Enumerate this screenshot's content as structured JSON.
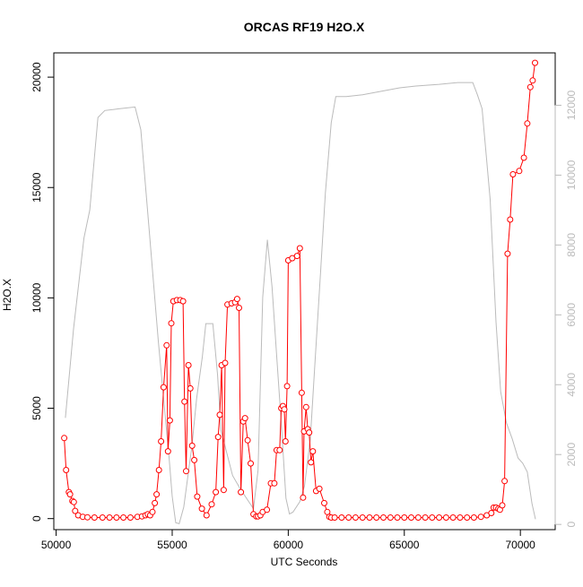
{
  "chart_data": {
    "type": "line",
    "title": "ORCAS RF19 H2O.X",
    "xlabel": "UTC Seconds",
    "ylabel": "H2O.X",
    "xlim": [
      49900,
      71500
    ],
    "ylim": [
      -500,
      21100
    ],
    "y2lim": [
      -150,
      13500
    ],
    "x_ticks": [
      50000,
      55000,
      60000,
      65000,
      70000
    ],
    "x_tick_labels": [
      "50000",
      "55000",
      "60000",
      "65000",
      "70000"
    ],
    "y_ticks": [
      0,
      5000,
      10000,
      15000,
      20000
    ],
    "y_tick_labels": [
      "0",
      "5000",
      "10000",
      "15000",
      "20000"
    ],
    "y2_ticks": [
      0,
      2000,
      4000,
      6000,
      8000,
      10000,
      12000
    ],
    "y2_tick_labels": [
      "0",
      "2000",
      "4000",
      "6000",
      "8000",
      "10000",
      "12000"
    ],
    "colors": {
      "primary": "#ff0000",
      "secondary": "#bbbbbb",
      "axis": "#000000"
    },
    "series": [
      {
        "axis": "left",
        "style": "line-points",
        "color": "#ff0000",
        "points": [
          [
            50350,
            3650
          ],
          [
            50430,
            2200
          ],
          [
            50550,
            1200
          ],
          [
            50600,
            1100
          ],
          [
            50700,
            800
          ],
          [
            50760,
            750
          ],
          [
            50820,
            350
          ],
          [
            50950,
            150
          ],
          [
            51150,
            80
          ],
          [
            51350,
            60
          ],
          [
            51650,
            50
          ],
          [
            52000,
            50
          ],
          [
            52300,
            50
          ],
          [
            52600,
            50
          ],
          [
            52900,
            50
          ],
          [
            53200,
            50
          ],
          [
            53500,
            80
          ],
          [
            53700,
            100
          ],
          [
            53850,
            150
          ],
          [
            53950,
            200
          ],
          [
            54050,
            150
          ],
          [
            54150,
            300
          ],
          [
            54250,
            700
          ],
          [
            54330,
            1100
          ],
          [
            54430,
            2200
          ],
          [
            54520,
            3500
          ],
          [
            54630,
            5950
          ],
          [
            54760,
            7850
          ],
          [
            54820,
            3050
          ],
          [
            54900,
            4450
          ],
          [
            54960,
            8850
          ],
          [
            55050,
            9850
          ],
          [
            55200,
            9900
          ],
          [
            55350,
            9900
          ],
          [
            55470,
            9850
          ],
          [
            55530,
            5300
          ],
          [
            55600,
            2150
          ],
          [
            55700,
            6950
          ],
          [
            55780,
            5900
          ],
          [
            55860,
            3300
          ],
          [
            55950,
            2650
          ],
          [
            56080,
            1000
          ],
          [
            56280,
            450
          ],
          [
            56480,
            150
          ],
          [
            56700,
            650
          ],
          [
            56880,
            1200
          ],
          [
            56980,
            3700
          ],
          [
            57050,
            4700
          ],
          [
            57130,
            6950
          ],
          [
            57220,
            1300
          ],
          [
            57280,
            7050
          ],
          [
            57380,
            9700
          ],
          [
            57560,
            9750
          ],
          [
            57710,
            9800
          ],
          [
            57800,
            9950
          ],
          [
            57880,
            9550
          ],
          [
            57960,
            1200
          ],
          [
            58060,
            4400
          ],
          [
            58140,
            4550
          ],
          [
            58250,
            3550
          ],
          [
            58380,
            2500
          ],
          [
            58500,
            200
          ],
          [
            58620,
            100
          ],
          [
            58700,
            100
          ],
          [
            58800,
            150
          ],
          [
            58900,
            300
          ],
          [
            59080,
            400
          ],
          [
            59250,
            1600
          ],
          [
            59400,
            1600
          ],
          [
            59500,
            3100
          ],
          [
            59630,
            3100
          ],
          [
            59700,
            5000
          ],
          [
            59770,
            5100
          ],
          [
            59830,
            4950
          ],
          [
            59880,
            3500
          ],
          [
            59950,
            6000
          ],
          [
            60000,
            11700
          ],
          [
            60170,
            11800
          ],
          [
            60380,
            11900
          ],
          [
            60500,
            12250
          ],
          [
            60580,
            5700
          ],
          [
            60640,
            950
          ],
          [
            60680,
            3950
          ],
          [
            60770,
            5050
          ],
          [
            60840,
            4050
          ],
          [
            60900,
            3900
          ],
          [
            60980,
            2550
          ],
          [
            61060,
            3050
          ],
          [
            61200,
            1250
          ],
          [
            61340,
            1350
          ],
          [
            61550,
            700
          ],
          [
            61680,
            300
          ],
          [
            61770,
            80
          ],
          [
            61850,
            50
          ],
          [
            62000,
            50
          ],
          [
            62300,
            50
          ],
          [
            62600,
            50
          ],
          [
            62900,
            50
          ],
          [
            63200,
            50
          ],
          [
            63500,
            50
          ],
          [
            63800,
            50
          ],
          [
            64100,
            50
          ],
          [
            64400,
            50
          ],
          [
            64700,
            50
          ],
          [
            65000,
            50
          ],
          [
            65300,
            50
          ],
          [
            65600,
            50
          ],
          [
            65900,
            50
          ],
          [
            66200,
            50
          ],
          [
            66500,
            50
          ],
          [
            66800,
            50
          ],
          [
            67100,
            50
          ],
          [
            67400,
            50
          ],
          [
            67700,
            50
          ],
          [
            68000,
            50
          ],
          [
            68300,
            80
          ],
          [
            68550,
            150
          ],
          [
            68750,
            250
          ],
          [
            68850,
            500
          ],
          [
            68950,
            500
          ],
          [
            69050,
            450
          ],
          [
            69120,
            400
          ],
          [
            69220,
            600
          ],
          [
            69320,
            1700
          ],
          [
            69450,
            12000
          ],
          [
            69560,
            13550
          ],
          [
            69680,
            15600
          ],
          [
            69950,
            15750
          ],
          [
            70150,
            16350
          ],
          [
            70300,
            17900
          ],
          [
            70430,
            19550
          ],
          [
            70530,
            19850
          ],
          [
            70630,
            20650
          ]
        ]
      },
      {
        "axis": "right",
        "style": "line",
        "color": "#bbbbbb",
        "points": [
          [
            50400,
            3050
          ],
          [
            50750,
            5600
          ],
          [
            51200,
            8200
          ],
          [
            51450,
            9000
          ],
          [
            51800,
            11650
          ],
          [
            52100,
            11850
          ],
          [
            52700,
            11900
          ],
          [
            53400,
            11950
          ],
          [
            53650,
            11300
          ],
          [
            54000,
            8500
          ],
          [
            54400,
            5250
          ],
          [
            54700,
            3100
          ],
          [
            54850,
            2050
          ],
          [
            55000,
            800
          ],
          [
            55150,
            50
          ],
          [
            55300,
            20
          ],
          [
            55500,
            500
          ],
          [
            55700,
            1500
          ],
          [
            55850,
            2250
          ],
          [
            56050,
            3600
          ],
          [
            56300,
            4800
          ],
          [
            56450,
            5750
          ],
          [
            56750,
            5750
          ],
          [
            56950,
            4300
          ],
          [
            57100,
            2700
          ],
          [
            57350,
            2050
          ],
          [
            57600,
            1400
          ],
          [
            57950,
            1000
          ],
          [
            58250,
            700
          ],
          [
            58500,
            450
          ],
          [
            58700,
            1550
          ],
          [
            58900,
            6500
          ],
          [
            59100,
            8150
          ],
          [
            59300,
            6800
          ],
          [
            59500,
            4850
          ],
          [
            59700,
            2900
          ],
          [
            59900,
            750
          ],
          [
            60050,
            300
          ],
          [
            60200,
            350
          ],
          [
            60500,
            650
          ],
          [
            60700,
            1100
          ],
          [
            60950,
            2450
          ],
          [
            61150,
            4600
          ],
          [
            61400,
            7300
          ],
          [
            61600,
            9500
          ],
          [
            61850,
            11500
          ],
          [
            62050,
            12250
          ],
          [
            62500,
            12250
          ],
          [
            63200,
            12300
          ],
          [
            64000,
            12400
          ],
          [
            64800,
            12500
          ],
          [
            65500,
            12550
          ],
          [
            66500,
            12600
          ],
          [
            67300,
            12650
          ],
          [
            67950,
            12650
          ],
          [
            68150,
            12300
          ],
          [
            68350,
            11900
          ],
          [
            68700,
            9300
          ],
          [
            68950,
            5800
          ],
          [
            69150,
            3800
          ],
          [
            69400,
            2900
          ],
          [
            69650,
            2450
          ],
          [
            69900,
            1900
          ],
          [
            70100,
            1750
          ],
          [
            70300,
            1500
          ],
          [
            70500,
            600
          ],
          [
            70650,
            150
          ]
        ]
      }
    ]
  }
}
